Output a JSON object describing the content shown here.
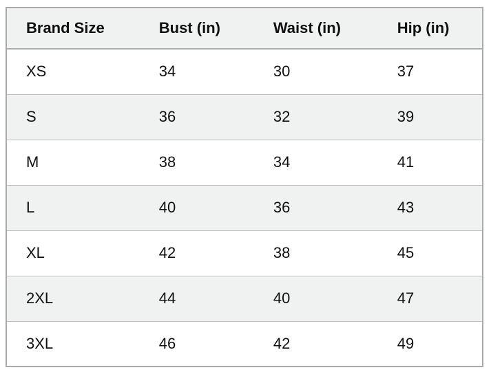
{
  "size_chart": {
    "columns": [
      "Brand Size",
      "Bust (in)",
      "Waist (in)",
      "Hip (in)"
    ],
    "rows": [
      {
        "cells": [
          "XS",
          "34",
          "30",
          "37"
        ]
      },
      {
        "cells": [
          "S",
          "36",
          "32",
          "39"
        ]
      },
      {
        "cells": [
          "M",
          "38",
          "34",
          "41"
        ]
      },
      {
        "cells": [
          "L",
          "40",
          "36",
          "43"
        ]
      },
      {
        "cells": [
          "XL",
          "42",
          "38",
          "45"
        ]
      },
      {
        "cells": [
          "2XL",
          "44",
          "40",
          "47"
        ]
      },
      {
        "cells": [
          "3XL",
          "46",
          "42",
          "49"
        ]
      }
    ],
    "colors": {
      "header_bg": "#f0f1f1",
      "stripe_bg": "#f0f1f1",
      "row_bg": "#ffffff",
      "outer_border": "#a9abab",
      "row_separator": "#bcbebe",
      "text": "#0f1111"
    }
  }
}
